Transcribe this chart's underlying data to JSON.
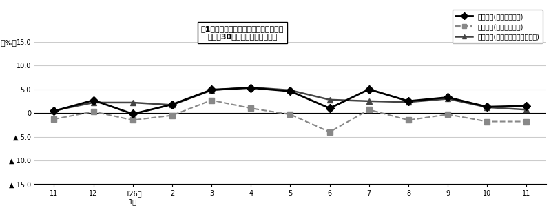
{
  "x_labels": [
    "11",
    "12",
    "H26年\n1月",
    "2",
    "3",
    "4",
    "5",
    "6",
    "7",
    "8",
    "9",
    "10",
    "11"
  ],
  "x_positions": [
    0,
    1,
    2,
    3,
    4,
    5,
    6,
    7,
    8,
    9,
    10,
    11,
    12
  ],
  "series1_name": "名目賃金(現金給与総額)",
  "series1_values": [
    0.4,
    2.7,
    -0.2,
    1.8,
    4.9,
    5.3,
    4.6,
    1.0,
    5.0,
    2.5,
    3.3,
    1.3,
    1.5
  ],
  "series1_color": "#000000",
  "series1_linestyle": "solid",
  "series1_marker": "D",
  "series2_name": "実質賃金(現金給与総額)",
  "series2_values": [
    -1.3,
    0.3,
    -1.5,
    -0.5,
    2.7,
    1.0,
    -0.3,
    -4.0,
    0.7,
    -1.5,
    -0.3,
    -1.8,
    -1.8
  ],
  "series2_color": "#888888",
  "series2_linestyle": "dashed",
  "series2_marker": "s",
  "series3_name": "名目賃金(きまって支給する給与)",
  "series3_values": [
    0.5,
    2.2,
    2.2,
    1.7,
    4.8,
    5.4,
    4.8,
    2.8,
    2.5,
    2.3,
    3.0,
    1.2,
    0.7
  ],
  "series3_color": "#444444",
  "series3_linestyle": "solid",
  "series3_marker": "^",
  "ylim": [
    -15.0,
    15.0
  ],
  "yticks": [
    -15.0,
    -10.0,
    -5.0,
    0.0,
    5.0,
    10.0,
    15.0
  ],
  "ytick_labels": [
    "▲ 15.0",
    "▲ 10.0",
    "▲ 5.0",
    "0",
    "5.0",
    "10.0",
    "15.0"
  ],
  "ylabel": "（%）",
  "title_line1": "図1　賃金指数の推移（対前年同月比）",
  "title_line2": "－規模30人以上－　調査産業計",
  "background_color": "#ffffff",
  "grid_color": "#cccccc",
  "figure_width": 8.0,
  "figure_height": 3.05
}
